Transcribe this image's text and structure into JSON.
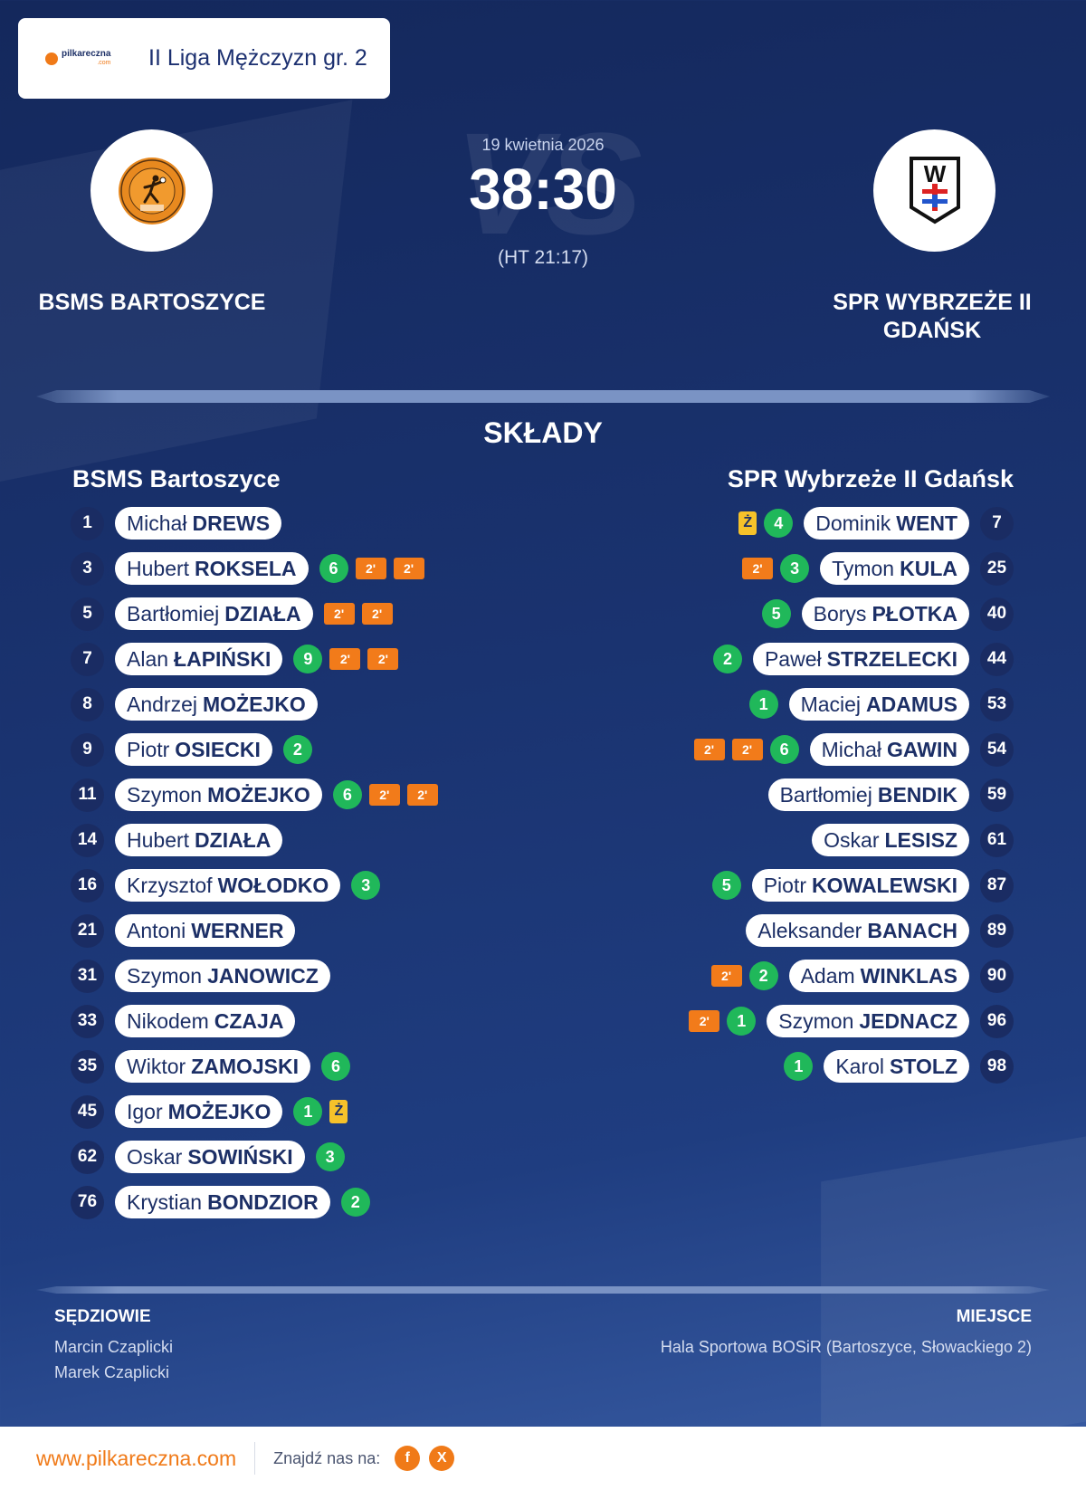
{
  "league": {
    "brand": "pilkareczna",
    "brand_sub": ".com",
    "name": "II Liga Mężczyzn gr. 2"
  },
  "match": {
    "date": "19 kwietnia 2026",
    "score": "38:30",
    "halftime": "(HT 21:17)",
    "vs_text": "VS"
  },
  "home_team": {
    "name_upper": "BSMS BARTOSZYCE",
    "name": "BSMS Bartoszyce"
  },
  "away_team": {
    "name_upper": "SPR WYBRZEŻE II GDAŃSK",
    "name": "SPR Wybrzeże II Gdańsk",
    "crest_letter": "W"
  },
  "section_title": "SKŁADY",
  "home_players": [
    {
      "number": "1",
      "first": "Michał",
      "last": "DREWS",
      "goals": "",
      "suspensions": [],
      "yellow": ""
    },
    {
      "number": "3",
      "first": "Hubert",
      "last": "ROKSELA",
      "goals": "6",
      "suspensions": [
        "2'",
        "2'"
      ],
      "yellow": ""
    },
    {
      "number": "5",
      "first": "Bartłomiej",
      "last": "DZIAŁA",
      "goals": "",
      "suspensions": [
        "2'",
        "2'"
      ],
      "yellow": ""
    },
    {
      "number": "7",
      "first": "Alan",
      "last": "ŁAPIŃSKI",
      "goals": "9",
      "suspensions": [
        "2'",
        "2'"
      ],
      "yellow": ""
    },
    {
      "number": "8",
      "first": "Andrzej",
      "last": "MOŻEJKO",
      "goals": "",
      "suspensions": [],
      "yellow": ""
    },
    {
      "number": "9",
      "first": "Piotr",
      "last": "OSIECKI",
      "goals": "2",
      "suspensions": [],
      "yellow": ""
    },
    {
      "number": "11",
      "first": "Szymon",
      "last": "MOŻEJKO",
      "goals": "6",
      "suspensions": [
        "2'",
        "2'"
      ],
      "yellow": ""
    },
    {
      "number": "14",
      "first": "Hubert",
      "last": "DZIAŁA",
      "goals": "",
      "suspensions": [],
      "yellow": ""
    },
    {
      "number": "16",
      "first": "Krzysztof",
      "last": "WOŁODKO",
      "goals": "3",
      "suspensions": [],
      "yellow": ""
    },
    {
      "number": "21",
      "first": "Antoni",
      "last": "WERNER",
      "goals": "",
      "suspensions": [],
      "yellow": ""
    },
    {
      "number": "31",
      "first": "Szymon",
      "last": "JANOWICZ",
      "goals": "",
      "suspensions": [],
      "yellow": ""
    },
    {
      "number": "33",
      "first": "Nikodem",
      "last": "CZAJA",
      "goals": "",
      "suspensions": [],
      "yellow": ""
    },
    {
      "number": "35",
      "first": "Wiktor",
      "last": "ZAMOJSKI",
      "goals": "6",
      "suspensions": [],
      "yellow": ""
    },
    {
      "number": "45",
      "first": "Igor",
      "last": "MOŻEJKO",
      "goals": "1",
      "suspensions": [],
      "yellow": "Ż"
    },
    {
      "number": "62",
      "first": "Oskar",
      "last": "SOWIŃSKI",
      "goals": "3",
      "suspensions": [],
      "yellow": ""
    },
    {
      "number": "76",
      "first": "Krystian",
      "last": "BONDZIOR",
      "goals": "2",
      "suspensions": [],
      "yellow": ""
    }
  ],
  "away_players": [
    {
      "number": "7",
      "first": "Dominik",
      "last": "WENT",
      "goals": "4",
      "suspensions": [],
      "yellow": "Ż"
    },
    {
      "number": "25",
      "first": "Tymon",
      "last": "KULA",
      "goals": "3",
      "suspensions": [
        "2'"
      ],
      "yellow": ""
    },
    {
      "number": "40",
      "first": "Borys",
      "last": "PŁOTKA",
      "goals": "5",
      "suspensions": [],
      "yellow": ""
    },
    {
      "number": "44",
      "first": "Paweł",
      "last": "STRZELECKI",
      "goals": "2",
      "suspensions": [],
      "yellow": ""
    },
    {
      "number": "53",
      "first": "Maciej",
      "last": "ADAMUS",
      "goals": "1",
      "suspensions": [],
      "yellow": ""
    },
    {
      "number": "54",
      "first": "Michał",
      "last": "GAWIN",
      "goals": "6",
      "suspensions": [
        "2'",
        "2'"
      ],
      "yellow": ""
    },
    {
      "number": "59",
      "first": "Bartłomiej",
      "last": "BENDIK",
      "goals": "",
      "suspensions": [],
      "yellow": ""
    },
    {
      "number": "61",
      "first": "Oskar",
      "last": "LESISZ",
      "goals": "",
      "suspensions": [],
      "yellow": ""
    },
    {
      "number": "87",
      "first": "Piotr",
      "last": "KOWALEWSKI",
      "goals": "5",
      "suspensions": [],
      "yellow": ""
    },
    {
      "number": "89",
      "first": "Aleksander",
      "last": "BANACH",
      "goals": "",
      "suspensions": [],
      "yellow": ""
    },
    {
      "number": "90",
      "first": "Adam",
      "last": "WINKLAS",
      "goals": "2",
      "suspensions": [
        "2'"
      ],
      "yellow": ""
    },
    {
      "number": "96",
      "first": "Szymon",
      "last": "JEDNACZ",
      "goals": "1",
      "suspensions": [
        "2'"
      ],
      "yellow": ""
    },
    {
      "number": "98",
      "first": "Karol",
      "last": "STOLZ",
      "goals": "1",
      "suspensions": [],
      "yellow": ""
    }
  ],
  "officials": {
    "label": "SĘDZIOWIE",
    "names": [
      "Marcin Czaplicki",
      "Marek Czaplicki"
    ]
  },
  "venue": {
    "label": "MIEJSCE",
    "name": "Hala Sportowa BOSiR (Bartoszyce, Słowackiego 2)"
  },
  "footer": {
    "site": "www.pilkareczna.com",
    "find_us": "Znajdź nas na:",
    "social": [
      {
        "icon": "facebook-icon",
        "glyph": "f"
      },
      {
        "icon": "x-icon",
        "glyph": "X"
      }
    ]
  },
  "colors": {
    "background": "#1a3370",
    "goals_badge": "#20b85a",
    "suspension_badge": "#f27b1a",
    "yellow_card": "#f6c22a",
    "brand_orange": "#f07a18",
    "text_dark": "#1c2f66"
  }
}
